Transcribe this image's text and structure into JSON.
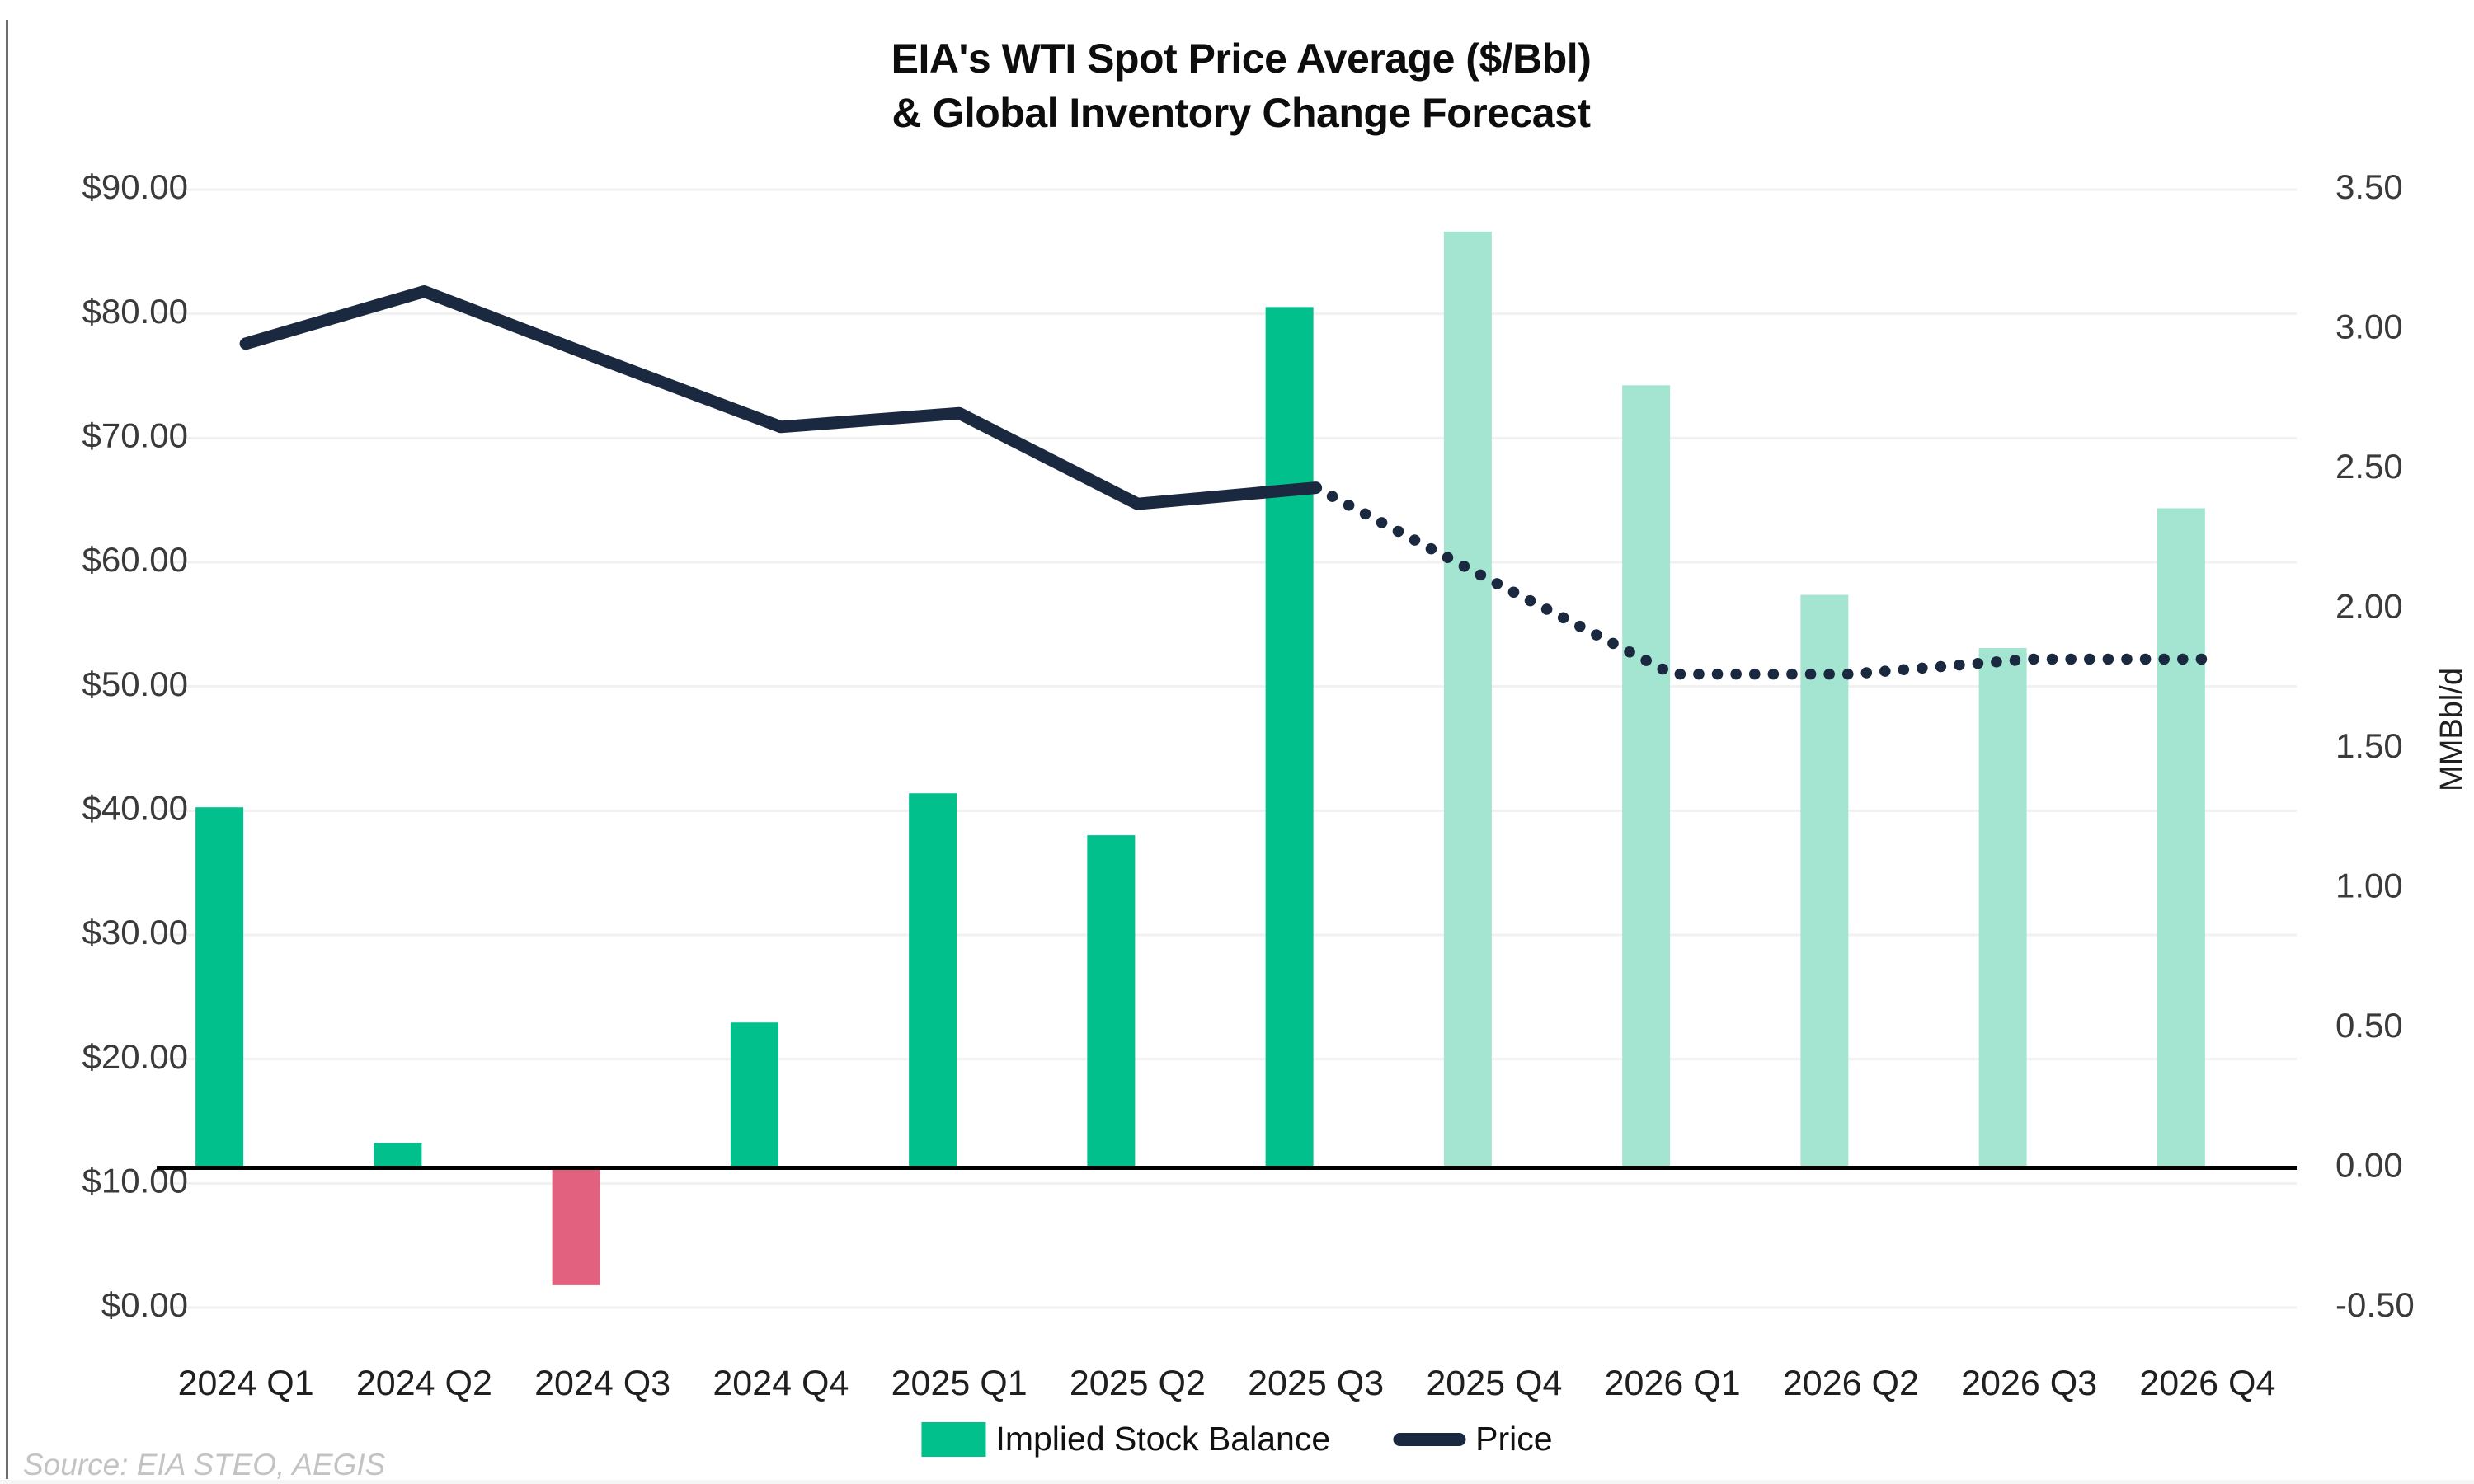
{
  "header": {
    "title_line1": "EIA's WTI Spot Price Average ($/Bbl)",
    "title_line2": "& Global Inventory Change Forecast"
  },
  "legend": {
    "bar_label": "Implied Stock Balance",
    "line_label": "Price"
  },
  "source": {
    "text": "Source: EIA STEO, AEGIS"
  },
  "colors": {
    "bar_actual": "#02c08c",
    "bar_forecast": "#a3e5d1",
    "bar_negative": "#e2617e",
    "price_line": "#1a2940",
    "gridline": "#f1f1f1",
    "zero_line": "#000000"
  },
  "chart_data": {
    "type": "combo-bar-line",
    "title": "EIA's WTI Spot Price Average ($/Bbl) & Global Inventory Change Forecast",
    "categories": [
      "2024 Q1",
      "2024 Q2",
      "2024 Q3",
      "2024 Q4",
      "2025 Q1",
      "2025 Q2",
      "2025 Q3",
      "2025 Q4",
      "2026 Q1",
      "2026 Q2",
      "2026 Q3",
      "2026 Q4"
    ],
    "series": [
      {
        "name": "Implied Stock Balance",
        "type": "bar",
        "axis": "right",
        "unit": "MMBbl/d",
        "values": [
          1.29,
          0.09,
          -0.42,
          0.52,
          1.34,
          1.19,
          3.08,
          3.35,
          2.8,
          2.05,
          1.86,
          2.36
        ],
        "forecast_start_index": 7
      },
      {
        "name": "Price",
        "type": "line",
        "axis": "left",
        "unit": "$/Bbl",
        "values": [
          77.6,
          81.8,
          76.3,
          70.9,
          72.0,
          64.7,
          66.0,
          58.4,
          51.0,
          51.0,
          52.2,
          52.2
        ],
        "dotted_start_index": 6
      }
    ],
    "left_axis": {
      "min": 0,
      "max": 90,
      "tick_values": [
        0,
        10,
        20,
        30,
        40,
        50,
        60,
        70,
        80,
        90
      ],
      "tick_labels": [
        "$0.00",
        "$10.00",
        "$20.00",
        "$30.00",
        "$40.00",
        "$50.00",
        "$60.00",
        "$70.00",
        "$80.00",
        "$90.00"
      ]
    },
    "right_axis": {
      "title": "MMBbl/d",
      "min": -0.5,
      "max": 3.5,
      "tick_values": [
        -0.5,
        0,
        0.5,
        1,
        1.5,
        2,
        2.5,
        3,
        3.5
      ],
      "tick_labels": [
        "-0.50",
        "0.00",
        "0.50",
        "1.00",
        "1.50",
        "2.00",
        "2.50",
        "3.00",
        "3.50"
      ]
    },
    "gridlines": true,
    "legend_position": "bottom"
  }
}
